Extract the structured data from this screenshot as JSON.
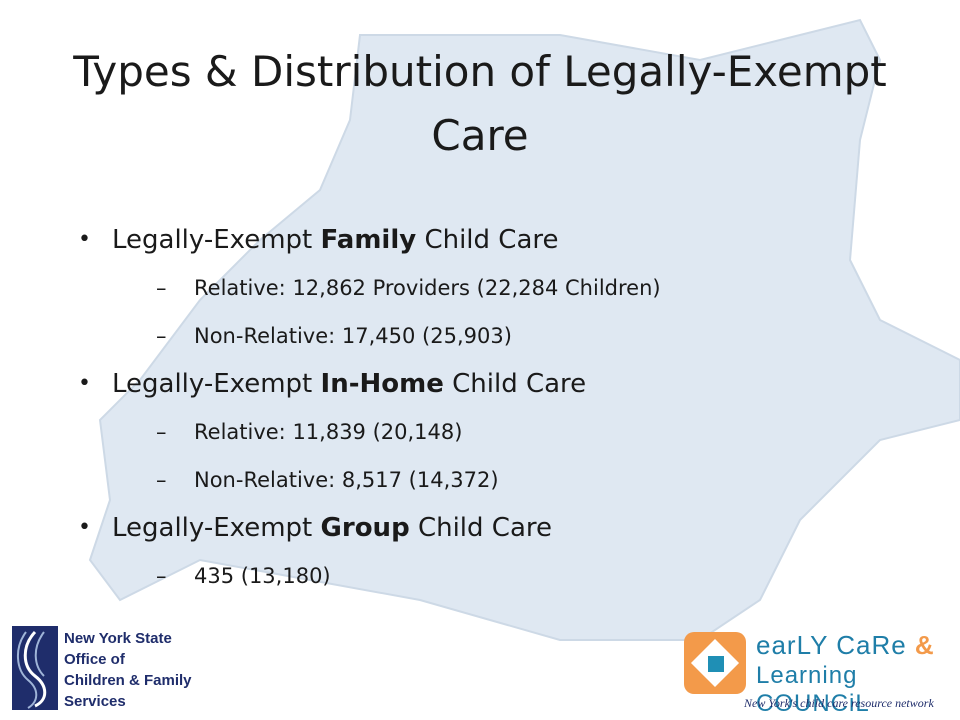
{
  "title": "Types & Distribution of Legally-Exempt Care",
  "items": [
    {
      "prefix": "Legally-Exempt ",
      "bold": "Family",
      "suffix": " Child Care",
      "subs": [
        "Relative: 12,862 Providers (22,284 Children)",
        "Non-Relative: 17,450  (25,903)"
      ]
    },
    {
      "prefix": "Legally-Exempt ",
      "bold": "In-Home",
      "suffix": " Child Care",
      "subs": [
        "Relative: 11,839  (20,148)",
        "Non-Relative: 8,517  (14,372)"
      ]
    },
    {
      "prefix": "Legally-Exempt ",
      "bold": "Group",
      "suffix": " Child Care",
      "subs": [
        "435  (13,180)"
      ]
    }
  ],
  "logos": {
    "left": {
      "line1": "New York State",
      "line2": "Office of",
      "line3": "Children & Family",
      "line4": "Services"
    },
    "right": {
      "word1": "earLY CaRe",
      "amp": "&",
      "word2": "Learning COUNCiL",
      "tagline": "New York's child care resource network"
    }
  },
  "colors": {
    "map": "#dfe8f2",
    "nys_blue": "#1f2d6b",
    "ecl_orange": "#f39a4a",
    "ecl_blue": "#1f7ea8"
  }
}
